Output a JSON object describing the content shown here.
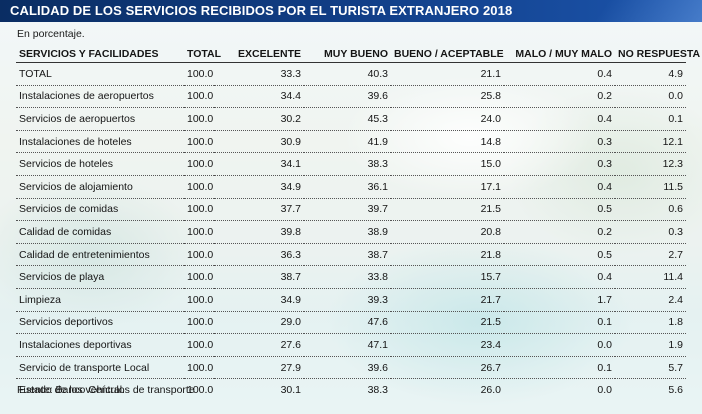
{
  "title": "CALIDAD DE LOS SERVICIOS RECIBIDOS POR EL TURISTA EXTRANJERO 2018",
  "note": "En porcentaje.",
  "columns": [
    "SERVICIOS Y FACILIDADES",
    "TOTAL",
    "EXCELENTE",
    "MUY BUENO",
    "BUENO / ACEPTABLE",
    "MALO / MUY MALO",
    "NO RESPUESTA"
  ],
  "rows": [
    [
      "TOTAL",
      "100.0",
      "33.3",
      "40.3",
      "21.1",
      "0.4",
      "4.9"
    ],
    [
      "Instalaciones de aeropuertos",
      "100.0",
      "34.4",
      "39.6",
      "25.8",
      "0.2",
      "0.0"
    ],
    [
      "Servicios de aeropuertos",
      "100.0",
      "30.2",
      "45.3",
      "24.0",
      "0.4",
      "0.1"
    ],
    [
      "Instalaciones de hoteles",
      "100.0",
      "30.9",
      "41.9",
      "14.8",
      "0.3",
      "12.1"
    ],
    [
      "Servicios de hoteles",
      "100.0",
      "34.1",
      "38.3",
      "15.0",
      "0.3",
      "12.3"
    ],
    [
      "Servicios de alojamiento",
      "100.0",
      "34.9",
      "36.1",
      "17.1",
      "0.4",
      "11.5"
    ],
    [
      "Servicios de comidas",
      "100.0",
      "37.7",
      "39.7",
      "21.5",
      "0.5",
      "0.6"
    ],
    [
      "Calidad de comidas",
      "100.0",
      "39.8",
      "38.9",
      "20.8",
      "0.2",
      "0.3"
    ],
    [
      "Calidad de entretenimientos",
      "100.0",
      "36.3",
      "38.7",
      "21.8",
      "0.5",
      "2.7"
    ],
    [
      "Servicios de playa",
      "100.0",
      "38.7",
      "33.8",
      "15.7",
      "0.4",
      "11.4"
    ],
    [
      "Limpieza",
      "100.0",
      "34.9",
      "39.3",
      "21.7",
      "1.7",
      "2.4"
    ],
    [
      "Servicios deportivos",
      "100.0",
      "29.0",
      "47.6",
      "21.5",
      "0.1",
      "1.8"
    ],
    [
      "Instalaciones deportivas",
      "100.0",
      "27.6",
      "47.1",
      "23.4",
      "0.0",
      "1.9"
    ],
    [
      "Servicio de transporte Local",
      "100.0",
      "27.9",
      "39.6",
      "26.7",
      "0.1",
      "5.7"
    ],
    [
      "Estado de los vehículos de transporte",
      "100.0",
      "30.1",
      "38.3",
      "26.0",
      "0.0",
      "5.6"
    ]
  ],
  "footer": "Fuente: Banco Central.",
  "colors": {
    "title_bar": "#12408a",
    "title_text": "#ffffff"
  }
}
